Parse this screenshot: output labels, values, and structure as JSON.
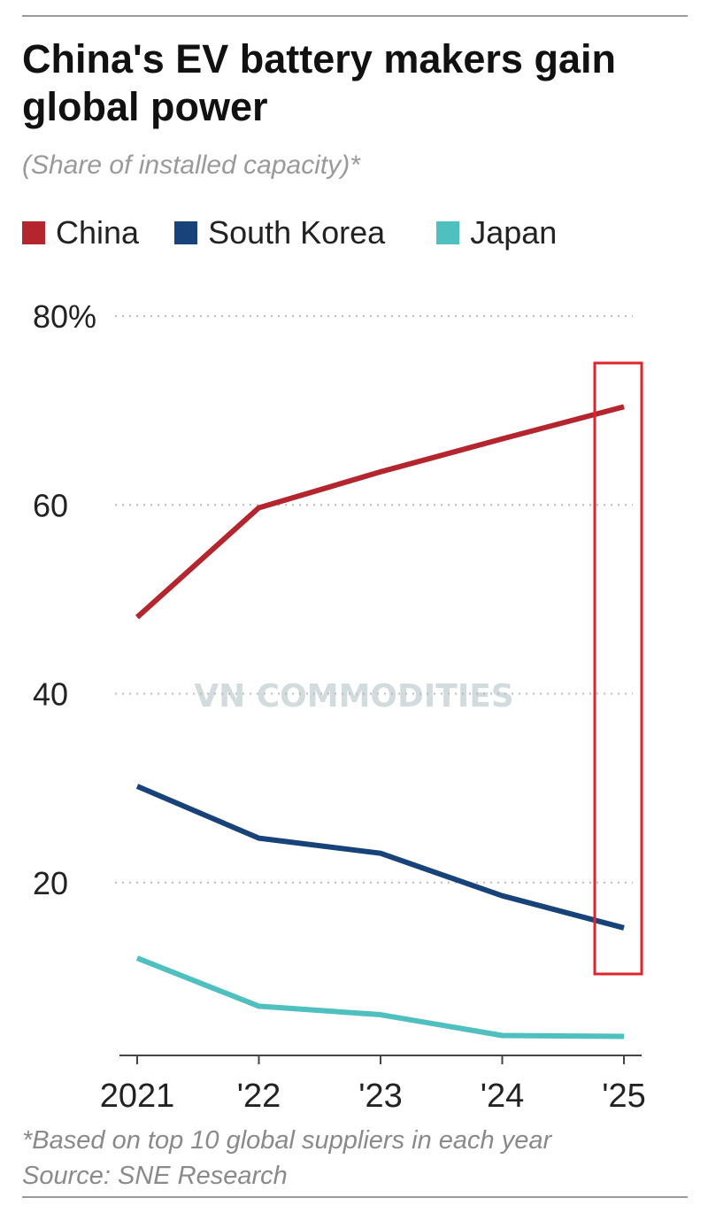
{
  "title": "China's EV battery makers gain global power",
  "subtitle": "(Share of installed capacity)*",
  "footnote": "*Based on top 10 global suppliers in each year",
  "source": "Source: SNE Research",
  "watermark": "VN COMMODITIES",
  "highlight_color": "#e0242b",
  "chart_data": {
    "type": "line",
    "categories": [
      "2021",
      "'22",
      "'23",
      "'24",
      "'25"
    ],
    "y_ticks": [
      {
        "value": 20,
        "label": "20"
      },
      {
        "value": 40,
        "label": "40"
      },
      {
        "value": 60,
        "label": "60"
      },
      {
        "value": 80,
        "label": "80%"
      }
    ],
    "ylim": [
      0,
      80
    ],
    "grid": "horizontal dotted",
    "legend": "top",
    "highlight": "'25",
    "series": [
      {
        "name": "China",
        "color": "#b5252d",
        "values": [
          48.1,
          59.7,
          63.5,
          67.0,
          70.4
        ]
      },
      {
        "name": "South Korea",
        "color": "#17427a",
        "values": [
          30.2,
          24.7,
          23.1,
          18.6,
          15.2
        ]
      },
      {
        "name": "Japan",
        "color": "#4fbfbf",
        "values": [
          12.0,
          6.9,
          6.0,
          3.8,
          3.7
        ]
      }
    ]
  }
}
